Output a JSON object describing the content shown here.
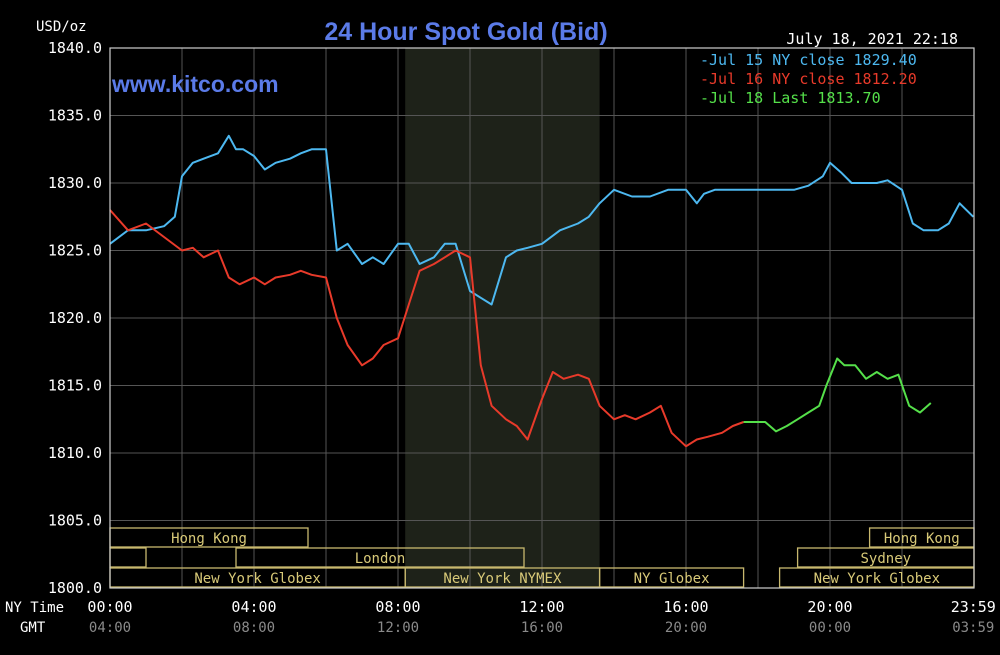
{
  "chart_data": {
    "type": "line",
    "title": "24 Hour Spot Gold (Bid)",
    "site": "www.kitco.com",
    "ylabel": "USD/oz",
    "timestamp": "July 18, 2021 22:18",
    "ylim": [
      1800,
      1840
    ],
    "xlim": [
      0,
      24
    ],
    "yticks": [
      "1840.0",
      "1835.0",
      "1830.0",
      "1825.0",
      "1820.0",
      "1815.0",
      "1810.0",
      "1805.0",
      "1800.0"
    ],
    "xtick_values": [
      0,
      4,
      8,
      12,
      16,
      20,
      23.98
    ],
    "xtick_labels_ny": [
      "00:00",
      "04:00",
      "08:00",
      "12:00",
      "16:00",
      "20:00",
      "23:59"
    ],
    "xtick_labels_gmt": [
      "04:00",
      "08:00",
      "12:00",
      "16:00",
      "20:00",
      "00:00",
      "03:59"
    ],
    "ny_time_label": "NY Time",
    "gmt_label": "GMT",
    "grid": true,
    "legend_position": "top-right",
    "shaded_region": [
      8.2,
      13.6
    ],
    "series": [
      {
        "name": "Jul 15 NY close 1829.40",
        "color": "#4db8f0",
        "x": [
          0,
          0.5,
          1,
          1.5,
          1.8,
          2,
          2.3,
          2.6,
          3,
          3.3,
          3.5,
          3.7,
          4,
          4.3,
          4.6,
          5,
          5.3,
          5.6,
          6,
          6.3,
          6.6,
          7,
          7.3,
          7.6,
          8,
          8.3,
          8.6,
          9,
          9.3,
          9.6,
          10,
          10.3,
          10.6,
          11,
          11.3,
          11.6,
          12,
          12.5,
          13,
          13.3,
          13.6,
          14,
          14.5,
          15,
          15.5,
          16,
          16.3,
          16.5,
          16.8,
          17,
          17.5,
          18,
          18.5,
          19,
          19.4,
          19.8,
          20,
          20.3,
          20.6,
          21,
          21.3,
          21.6,
          22,
          22.3,
          22.6,
          23,
          23.3,
          23.6,
          23.98
        ],
        "y": [
          1825.5,
          1826.5,
          1826.5,
          1826.8,
          1827.5,
          1830.5,
          1831.5,
          1831.8,
          1832.2,
          1833.5,
          1832.5,
          1832.5,
          1832,
          1831,
          1831.5,
          1831.8,
          1832.2,
          1832.5,
          1832.5,
          1825,
          1825.5,
          1824,
          1824.5,
          1824,
          1825.5,
          1825.5,
          1824,
          1824.5,
          1825.5,
          1825.5,
          1822,
          1821.5,
          1821,
          1824.5,
          1825,
          1825.2,
          1825.5,
          1826.5,
          1827,
          1827.5,
          1828.5,
          1829.5,
          1829,
          1829,
          1829.5,
          1829.5,
          1828.5,
          1829.2,
          1829.5,
          1829.5,
          1829.5,
          1829.5,
          1829.5,
          1829.5,
          1829.8,
          1830.5,
          1831.5,
          1830.8,
          1830,
          1830,
          1830,
          1830.2,
          1829.5,
          1827,
          1826.5,
          1826.5,
          1827,
          1828.5,
          1827.5
        ]
      },
      {
        "name": "Jul 16 NY close 1812.20",
        "color": "#e83a2a",
        "x": [
          0,
          0.5,
          1,
          1.5,
          2,
          2.3,
          2.6,
          3,
          3.3,
          3.6,
          4,
          4.3,
          4.6,
          5,
          5.3,
          5.6,
          6,
          6.3,
          6.6,
          7,
          7.3,
          7.6,
          8,
          8.3,
          8.6,
          9,
          9.3,
          9.6,
          10,
          10.3,
          10.6,
          11,
          11.3,
          11.6,
          12,
          12.3,
          12.6,
          13,
          13.3,
          13.6,
          14,
          14.3,
          14.6,
          15,
          15.3,
          15.6,
          16,
          16.3,
          16.6,
          17,
          17.3,
          17.6
        ],
        "y": [
          1828,
          1826.5,
          1827,
          1826,
          1825,
          1825.2,
          1824.5,
          1825,
          1823,
          1822.5,
          1823,
          1822.5,
          1823,
          1823.2,
          1823.5,
          1823.2,
          1823,
          1820,
          1818,
          1816.5,
          1817,
          1818,
          1818.5,
          1821,
          1823.5,
          1824,
          1824.5,
          1825,
          1824.5,
          1816.5,
          1813.5,
          1812.5,
          1812,
          1811,
          1814,
          1816,
          1815.5,
          1815.8,
          1815.5,
          1813.5,
          1812.5,
          1812.8,
          1812.5,
          1813,
          1813.5,
          1811.5,
          1810.5,
          1811,
          1811.2,
          1811.5,
          1812,
          1812.3
        ]
      },
      {
        "name": "Jul 18 Last 1813.70",
        "color": "#55e04a",
        "x": [
          17.6,
          17.9,
          18.2,
          18.5,
          18.8,
          19.1,
          19.4,
          19.7,
          19.9,
          20.2,
          20.4,
          20.7,
          21,
          21.3,
          21.6,
          21.9,
          22.2,
          22.5,
          22.8
        ],
        "y": [
          1812.3,
          1812.3,
          1812.3,
          1811.6,
          1812,
          1812.5,
          1813,
          1813.5,
          1815,
          1817,
          1816.5,
          1816.5,
          1815.5,
          1816,
          1815.5,
          1815.8,
          1813.5,
          1813,
          1813.7
        ]
      }
    ],
    "sessions": [
      {
        "label": "Hong Kong",
        "start": 0,
        "end": 5.5,
        "row": 0
      },
      {
        "label": "",
        "start": 0,
        "end": 1,
        "row": 1
      },
      {
        "label": "London",
        "start": 3.5,
        "end": 11.5,
        "row": 1
      },
      {
        "label": "New York Globex",
        "start": 0,
        "end": 8.2,
        "row": 2
      },
      {
        "label": "New York NYMEX",
        "start": 8.2,
        "end": 13.6,
        "row": 2
      },
      {
        "label": "NY Globex",
        "start": 13.6,
        "end": 17.6,
        "row": 2
      },
      {
        "label": "Hong Kong",
        "start": 21.1,
        "end": 24,
        "row": 0
      },
      {
        "label": "Sydney",
        "start": 19.1,
        "end": 24,
        "row": 1
      },
      {
        "label": "New York Globex",
        "start": 18.6,
        "end": 24,
        "row": 2
      }
    ]
  }
}
